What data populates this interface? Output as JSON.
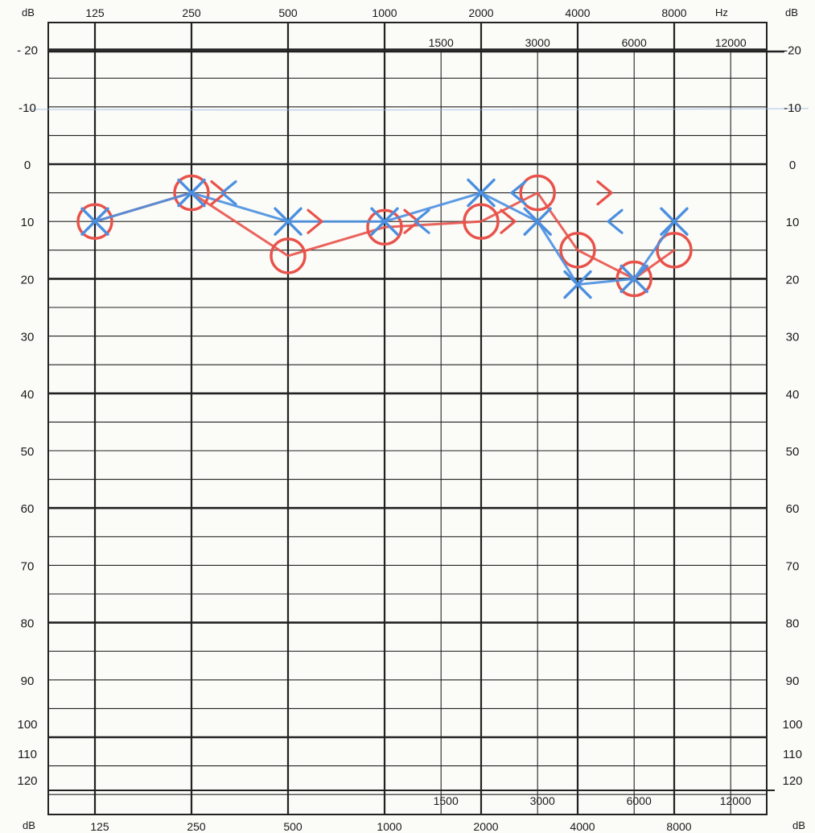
{
  "chart_data": {
    "type": "scatter",
    "title": "",
    "x_scale": "log2",
    "y_inverted": true,
    "ylim": [
      -20,
      120
    ],
    "grid": true,
    "unit_labels": {
      "db_top_left": "dB",
      "db_top_right": "dB",
      "db_bottom_left": "dB",
      "db_bottom_right": "dB",
      "hz": "Hz"
    },
    "octave_ticks_top": [
      "125",
      "250",
      "500",
      "1000",
      "2000",
      "4000",
      "8000"
    ],
    "octave_ticks_bottom": [
      "125",
      "250",
      "500",
      "1000",
      "2000",
      "4000",
      "8000"
    ],
    "mid_ticks_top": [
      "1500",
      "3000",
      "6000",
      "12000"
    ],
    "mid_ticks_bottom": [
      "1500",
      "3000",
      "6000",
      "12000"
    ],
    "y_ticks_left": [
      "- 20",
      "-10",
      "0",
      "10",
      "20",
      "30",
      "40",
      "50",
      "60",
      "70",
      "80",
      "90",
      "100",
      "110",
      "120"
    ],
    "y_ticks_right": [
      "-20",
      "-10",
      "0",
      "10",
      "20",
      "30",
      "40",
      "50",
      "60",
      "70",
      "80",
      "90",
      "100",
      "110",
      "120"
    ],
    "series": [
      {
        "color": "#e8524a",
        "marker": "circle",
        "connected": true,
        "points": [
          [
            125,
            10
          ],
          [
            250,
            5
          ],
          [
            500,
            16
          ],
          [
            1000,
            11
          ],
          [
            2000,
            10
          ],
          [
            3000,
            5
          ],
          [
            4000,
            15
          ],
          [
            6000,
            20
          ],
          [
            8000,
            15
          ]
        ]
      },
      {
        "color": "#4a8fe0",
        "marker": "x",
        "connected": true,
        "points": [
          [
            125,
            10
          ],
          [
            250,
            5
          ],
          [
            500,
            10
          ],
          [
            1000,
            10
          ],
          [
            2000,
            5
          ],
          [
            3000,
            10
          ],
          [
            4000,
            21
          ],
          [
            6000,
            20
          ],
          [
            8000,
            10
          ]
        ]
      },
      {
        "color": "#e8524a",
        "marker": "bracket-right",
        "connected": false,
        "points": [
          [
            250,
            5
          ],
          [
            500,
            10
          ],
          [
            1000,
            10
          ],
          [
            2000,
            10
          ],
          [
            4000,
            5
          ]
        ]
      },
      {
        "color": "#4a8fe0",
        "marker": "bracket-left",
        "connected": false,
        "points": [
          [
            250,
            5
          ],
          [
            1000,
            10
          ],
          [
            2000,
            5
          ],
          [
            4000,
            10
          ]
        ]
      }
    ]
  }
}
